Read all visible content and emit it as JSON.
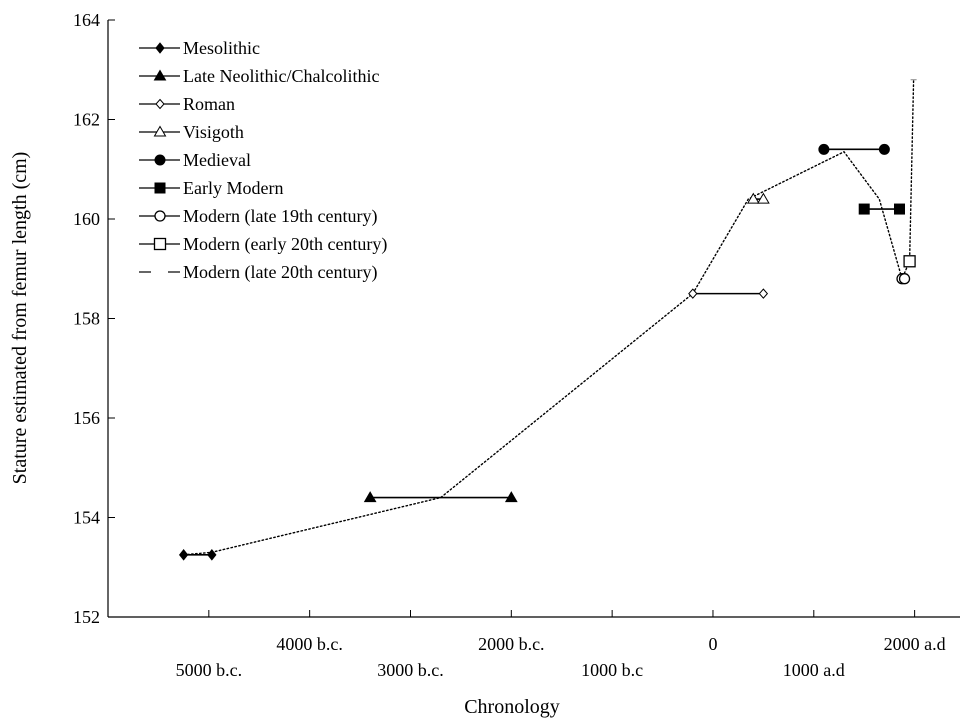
{
  "chart_data": {
    "type": "scatter",
    "title": "",
    "xlabel": "Chronology",
    "ylabel": "Stature estimated from femur length (cm)",
    "xlim": [
      -6000,
      2450
    ],
    "ylim": [
      152,
      164
    ],
    "yticks": [
      152,
      154,
      156,
      158,
      160,
      162,
      164
    ],
    "xticks_upper": [
      {
        "value": -4000,
        "label": "4000 b.c."
      },
      {
        "value": -2000,
        "label": "2000 b.c."
      },
      {
        "value": 0,
        "label": "0"
      },
      {
        "value": 2000,
        "label": "2000 a.d"
      }
    ],
    "xticks_lower": [
      {
        "value": -5000,
        "label": "5000 b.c."
      },
      {
        "value": -3000,
        "label": "3000 b.c."
      },
      {
        "value": -1000,
        "label": "1000 b.c"
      },
      {
        "value": 1000,
        "label": "1000 a.d"
      }
    ],
    "legend_position": "top-left",
    "series": [
      {
        "name": "Mesolithic",
        "marker": "diamond-filled",
        "range": [
          -5250,
          -4970
        ],
        "y": 153.25
      },
      {
        "name": "Late Neolithic/Chalcolithic",
        "marker": "triangle-filled",
        "range": [
          -3400,
          -2000
        ],
        "y": 154.4
      },
      {
        "name": "Roman",
        "marker": "diamond-open",
        "range": [
          -200,
          500
        ],
        "y": 158.5
      },
      {
        "name": "Visigoth",
        "marker": "triangle-open",
        "range": [
          400,
          500
        ],
        "y": 160.4
      },
      {
        "name": "Medieval",
        "marker": "circle-filled",
        "range": [
          1100,
          1700
        ],
        "y": 161.4
      },
      {
        "name": "Early Modern",
        "marker": "square-filled",
        "range": [
          1500,
          1850
        ],
        "y": 160.2
      },
      {
        "name": "Modern (late 19th century)",
        "marker": "circle-open",
        "range": [
          1875,
          1900
        ],
        "y": 158.8
      },
      {
        "name": "Modern (early 20th century)",
        "marker": "square-open",
        "range": [
          1950,
          1950
        ],
        "y": 159.15
      },
      {
        "name": "Modern (late 20th century)",
        "marker": "dash",
        "range": [
          1990,
          1990
        ],
        "y": 162.8
      }
    ],
    "trend": {
      "style": "dotted",
      "x": [
        -5250,
        -4970,
        -2700,
        -200,
        350,
        450,
        1300,
        1650,
        1875,
        1950,
        1990
      ],
      "y": [
        153.25,
        153.3,
        154.4,
        158.5,
        160.4,
        160.5,
        161.35,
        160.4,
        158.8,
        159.15,
        162.8
      ]
    }
  }
}
